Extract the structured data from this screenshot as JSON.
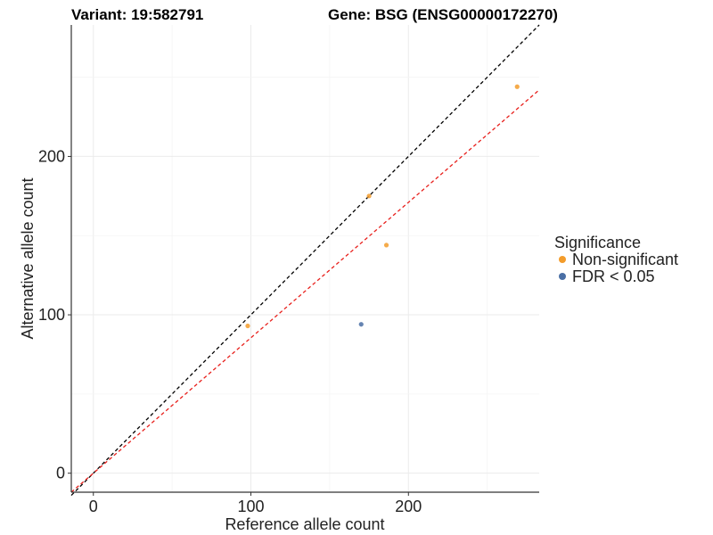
{
  "chart_data": {
    "type": "scatter",
    "title_left": "Variant: 19:582791",
    "title_right": "Gene: BSG (ENSG00000172270)",
    "xlabel": "Reference allele count",
    "ylabel": "Alternative allele count",
    "xlim": [
      -14,
      283
    ],
    "ylim": [
      -12,
      283
    ],
    "xticks": [
      0,
      100,
      200
    ],
    "yticks": [
      0,
      100,
      200
    ],
    "grid": true,
    "legend": {
      "title": "Significance",
      "position": "right",
      "entries": [
        {
          "label": "Non-significant",
          "color": "#f39c2b"
        },
        {
          "label": "FDR < 0.05",
          "color": "#4a6fa5"
        }
      ]
    },
    "points": [
      {
        "x": 98,
        "y": 93,
        "group": "Non-significant"
      },
      {
        "x": 175,
        "y": 175,
        "group": "Non-significant"
      },
      {
        "x": 186,
        "y": 144,
        "group": "Non-significant"
      },
      {
        "x": 269,
        "y": 244,
        "group": "Non-significant"
      },
      {
        "x": 170,
        "y": 94,
        "group": "FDR < 0.05"
      }
    ],
    "reference_lines": [
      {
        "slope": 1.0,
        "intercept": 0,
        "color": "#000000",
        "style": "dashed"
      },
      {
        "slope": 0.855,
        "intercept": 0,
        "color": "#e8201c",
        "style": "dashed"
      }
    ]
  }
}
